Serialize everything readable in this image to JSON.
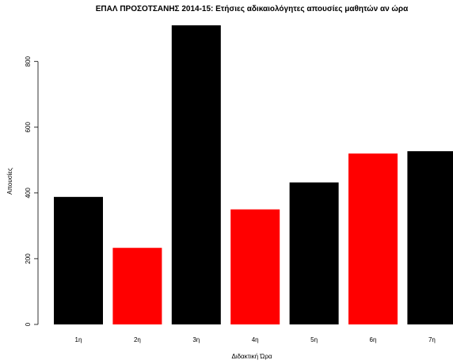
{
  "chart_data": {
    "type": "bar",
    "title": "ΕΠΑΛ ΠΡΟΣΟΤΣΑΝΗΣ 2014-15: Ετήσιες αδικαιολόγητες απουσίες μαθητών αν ώρα",
    "xlabel": "Διδακτική Ώρα",
    "ylabel": "Απουσίες",
    "categories": [
      "1η",
      "2η",
      "3η",
      "4η",
      "5η",
      "6η",
      "7η"
    ],
    "values": [
      388,
      233,
      910,
      350,
      432,
      520,
      527
    ],
    "yticks": [
      0,
      200,
      400,
      600,
      800
    ],
    "ylim": [
      0,
      910
    ],
    "colors": [
      "#000000",
      "#ff0000",
      "#000000",
      "#ff0000",
      "#000000",
      "#ff0000",
      "#000000"
    ],
    "grid": false,
    "legend": "none"
  }
}
